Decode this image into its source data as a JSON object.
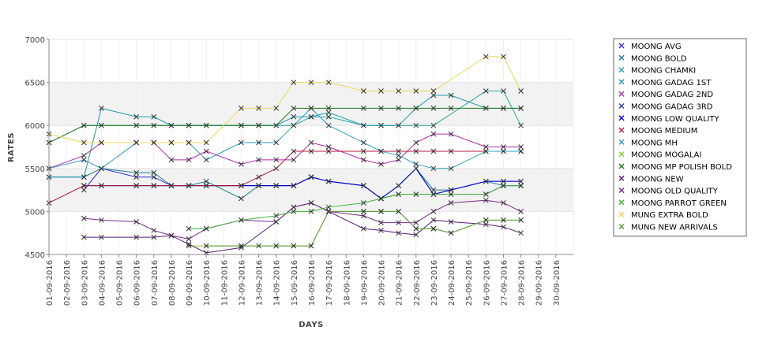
{
  "chart_data": {
    "type": "line",
    "xlabel": "DAYS",
    "ylabel": "RATES",
    "x": [
      "01-09-2016",
      "02-09-2016",
      "03-09-2016",
      "04-09-2016",
      "05-09-2016",
      "06-09-2016",
      "07-09-2016",
      "08-09-2016",
      "09-09-2016",
      "10-09-2016",
      "11-09-2016",
      "12-09-2016",
      "13-09-2016",
      "14-09-2016",
      "15-09-2016",
      "16-09-2016",
      "17-09-2016",
      "18-09-2016",
      "19-09-2016",
      "20-09-2016",
      "21-09-2016",
      "22-09-2016",
      "23-09-2016",
      "24-09-2016",
      "25-09-2016",
      "26-09-2016",
      "27-09-2016",
      "28-09-2016",
      "29-09-2016",
      "30-09-2016"
    ],
    "ylim": [
      4500,
      7000
    ],
    "yticks": [
      "4500",
      "5000",
      "5500",
      "6000",
      "6500",
      "7000"
    ],
    "grid": "alternating horizontal bands",
    "legend_position": "right",
    "marker": "x",
    "series": [
      {
        "name": "MOONG AVG",
        "color": "#2b2bd9",
        "values": [
          null,
          null,
          5250,
          5500,
          null,
          5400,
          5400,
          5300,
          5300,
          5300,
          null,
          5300,
          5300,
          5300,
          5300,
          5400,
          5350,
          null,
          5300,
          5150,
          5300,
          5500,
          5200,
          5250,
          null,
          5350,
          5350,
          5350,
          null,
          null
        ]
      },
      {
        "name": "MOONG BOLD",
        "color": "#1f7c95",
        "values": [
          5400,
          null,
          5400,
          5500,
          null,
          5450,
          5450,
          5300,
          5300,
          5350,
          null,
          5150,
          5300,
          5300,
          5300,
          5400,
          5350,
          null,
          5300,
          5150,
          5300,
          5500,
          5250,
          5250,
          null,
          5350,
          5300,
          5300,
          null,
          null
        ]
      },
      {
        "name": "MOONG CHAMKI",
        "color": "#2aa6a0",
        "values": [
          5800,
          null,
          6000,
          6000,
          null,
          6000,
          6000,
          6000,
          6000,
          6000,
          null,
          6000,
          6000,
          6000,
          6000,
          6100,
          6100,
          null,
          6000,
          6000,
          6000,
          6000,
          6000,
          null,
          null,
          6400,
          6400,
          6000,
          null,
          null
        ]
      },
      {
        "name": "MOONG GADAG 1ST",
        "color": "#1a9ab0",
        "values": [
          5400,
          null,
          5400,
          6200,
          null,
          6100,
          6100,
          6000,
          6000,
          6000,
          null,
          6000,
          6000,
          6000,
          6100,
          6100,
          6150,
          null,
          6000,
          6000,
          6000,
          6200,
          6350,
          6350,
          null,
          6200,
          6200,
          6200,
          null,
          null
        ]
      },
      {
        "name": "MOONG GADAG 2ND",
        "color": "#b02ab0",
        "values": [
          5500,
          null,
          5650,
          5800,
          null,
          5800,
          5800,
          5600,
          5600,
          5700,
          null,
          5550,
          5600,
          5600,
          5600,
          5800,
          5750,
          null,
          5600,
          5550,
          5600,
          5800,
          5900,
          5900,
          null,
          5750,
          5750,
          5750,
          null,
          null
        ]
      },
      {
        "name": "MOONG GADAG 3RD",
        "color": "#2a3aa8",
        "values": [
          null,
          null,
          5300,
          5300,
          null,
          5300,
          5300,
          5300,
          5300,
          5300,
          null,
          5300,
          5300,
          5300,
          5300,
          5400,
          5350,
          null,
          5300,
          5150,
          5200,
          5200,
          5200,
          5200,
          null,
          5200,
          5300,
          5300,
          null,
          null
        ]
      },
      {
        "name": "MOONG LOW QUALITY",
        "color": "#0000cc",
        "values": [
          null,
          null,
          5300,
          5300,
          null,
          5300,
          5300,
          5300,
          5300,
          5300,
          null,
          5300,
          5300,
          5300,
          5300,
          5400,
          5350,
          null,
          5300,
          5150,
          5300,
          5500,
          5200,
          5250,
          null,
          5350,
          5350,
          5350,
          null,
          null
        ]
      },
      {
        "name": "MOONG MEDIUM",
        "color": "#b01a3a",
        "values": [
          5100,
          null,
          5300,
          5300,
          null,
          5300,
          5300,
          5300,
          5300,
          5300,
          null,
          5300,
          5400,
          5500,
          5700,
          5700,
          5700,
          null,
          5700,
          5700,
          5700,
          5700,
          5700,
          5700,
          null,
          5700,
          5700,
          5700,
          null,
          null
        ]
      },
      {
        "name": "MOONG MH",
        "color": "#2aa0c0",
        "values": [
          5500,
          null,
          5600,
          5500,
          null,
          5800,
          5800,
          5800,
          5800,
          5600,
          null,
          5800,
          5800,
          5800,
          6000,
          6200,
          6000,
          null,
          5800,
          5700,
          5650,
          5550,
          5500,
          5500,
          null,
          5700,
          5700,
          5700,
          null,
          null
        ]
      },
      {
        "name": "MOONG MOGALAI",
        "color": "#8aca3a",
        "values": [
          null,
          null,
          null,
          null,
          null,
          null,
          null,
          null,
          4600,
          4600,
          null,
          4600,
          4600,
          4600,
          4600,
          4600,
          5000,
          null,
          5000,
          5000,
          5000,
          4800,
          4800,
          4750,
          null,
          4900,
          4900,
          4900,
          null,
          null
        ]
      },
      {
        "name": "MOONG MP POLISH BOLD",
        "color": "#1a7a1a",
        "values": [
          5800,
          null,
          6000,
          6000,
          null,
          6000,
          6000,
          6000,
          6000,
          6000,
          null,
          6000,
          6000,
          6000,
          6200,
          6200,
          6200,
          null,
          6200,
          6200,
          6200,
          6200,
          6200,
          6200,
          null,
          6200,
          6200,
          6200,
          null,
          null
        ]
      },
      {
        "name": "MOONG NEW",
        "color": "#5a1a7a",
        "values": [
          null,
          null,
          4700,
          4700,
          null,
          4700,
          4700,
          4720,
          4620,
          4520,
          null,
          4580,
          null,
          4880,
          5050,
          5100,
          5000,
          null,
          4800,
          4780,
          4750,
          4730,
          4900,
          4880,
          null,
          4850,
          4820,
          4750,
          null,
          null
        ]
      },
      {
        "name": "MOONG OLD QUALITY",
        "color": "#7a2a8a",
        "values": [
          null,
          null,
          4920,
          4900,
          null,
          4880,
          4780,
          4720,
          4680,
          4800,
          null,
          4900,
          null,
          4880,
          5050,
          5100,
          5000,
          null,
          4950,
          4870,
          4870,
          4870,
          5000,
          5100,
          null,
          5130,
          5100,
          5000,
          null,
          null
        ]
      },
      {
        "name": "MOONG PARROT GREEN",
        "color": "#3ab03a",
        "values": [
          null,
          null,
          null,
          null,
          null,
          null,
          null,
          null,
          4800,
          4800,
          null,
          4900,
          null,
          4950,
          5000,
          5000,
          5050,
          null,
          5100,
          5150,
          5200,
          5200,
          5200,
          5200,
          null,
          5200,
          5300,
          5300,
          null,
          null
        ]
      },
      {
        "name": "MUNG EXTRA BOLD",
        "color": "#e8d85a",
        "values": [
          5900,
          null,
          5800,
          5800,
          null,
          5800,
          5800,
          5800,
          5800,
          5800,
          null,
          6200,
          6200,
          6200,
          6500,
          6500,
          6500,
          null,
          6400,
          6400,
          6400,
          6400,
          6400,
          null,
          null,
          6800,
          6800,
          6400,
          null,
          null
        ]
      },
      {
        "name": "MUNG NEW ARRIVALS",
        "color": "#5a9a3a",
        "values": [
          null,
          null,
          null,
          null,
          null,
          null,
          null,
          null,
          null,
          4600,
          null,
          4600,
          null,
          4600,
          4600,
          4600,
          5000,
          null,
          5000,
          5000,
          5000,
          4800,
          4800,
          4750,
          null,
          4900,
          4900,
          4900,
          null,
          null
        ]
      }
    ]
  }
}
